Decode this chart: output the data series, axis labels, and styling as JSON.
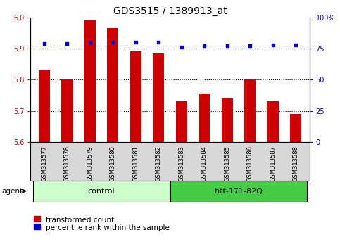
{
  "title": "GDS3515 / 1389913_at",
  "samples": [
    "GSM313577",
    "GSM313578",
    "GSM313579",
    "GSM313580",
    "GSM313581",
    "GSM313582",
    "GSM313583",
    "GSM313584",
    "GSM313585",
    "GSM313586",
    "GSM313587",
    "GSM313588"
  ],
  "bar_values": [
    5.83,
    5.8,
    5.99,
    5.965,
    5.89,
    5.885,
    5.73,
    5.755,
    5.74,
    5.8,
    5.73,
    5.69
  ],
  "percentile_values": [
    79,
    79,
    80,
    80,
    80,
    80,
    76,
    77,
    77,
    77,
    78,
    78
  ],
  "bar_color": "#cc0000",
  "percentile_color": "#0000cc",
  "ylim_left": [
    5.6,
    6.0
  ],
  "ylim_right": [
    0,
    100
  ],
  "yticks_left": [
    5.6,
    5.7,
    5.8,
    5.9,
    6.0
  ],
  "yticks_right": [
    0,
    25,
    50,
    75,
    100
  ],
  "ytick_labels_right": [
    "0",
    "25",
    "50",
    "75",
    "100%"
  ],
  "groups": [
    {
      "label": "control",
      "start": 0,
      "end": 6,
      "color": "#ccffcc"
    },
    {
      "label": "htt-171-82Q",
      "start": 6,
      "end": 12,
      "color": "#44cc44"
    }
  ],
  "agent_label": "agent",
  "legend_bar_label": "transformed count",
  "legend_dot_label": "percentile rank within the sample",
  "bar_bottom": 5.6,
  "dotted_lines": [
    5.7,
    5.8,
    5.9
  ],
  "background_color": "#ffffff",
  "xticklabel_bg": "#d8d8d8",
  "bar_width": 0.5,
  "title_fontsize": 10,
  "tick_fontsize": 7,
  "sample_fontsize": 6,
  "group_fontsize": 8,
  "legend_fontsize": 7.5
}
